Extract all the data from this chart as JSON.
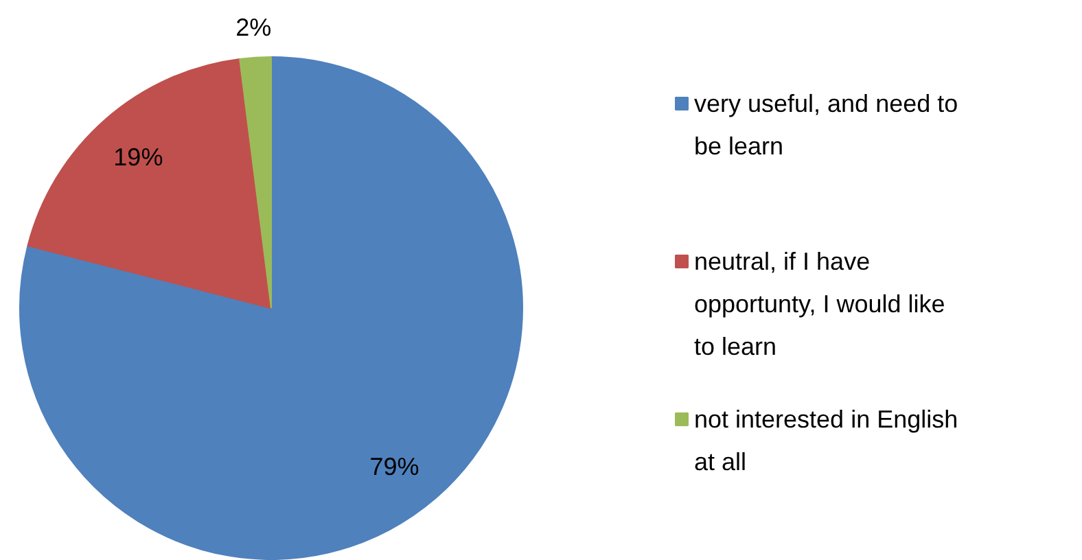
{
  "chart_data": {
    "type": "pie",
    "categories": [
      "very useful, and need to be learn",
      "neutral, if I have opportunty, I would  like to learn",
      "not interested in English at all"
    ],
    "values": [
      79,
      19,
      2
    ],
    "colors": [
      "#4f81bd",
      "#c0504d",
      "#9bbb59"
    ],
    "value_labels": [
      "79%",
      "19%",
      "2%"
    ],
    "legend": "right"
  }
}
